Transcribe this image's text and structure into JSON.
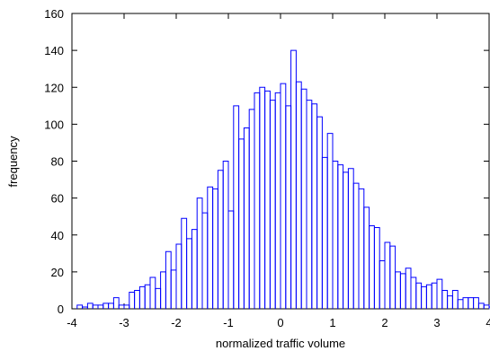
{
  "chart_data": {
    "type": "histogram",
    "title": "",
    "xlabel": "normalized traffic volume",
    "ylabel": "frequency",
    "xlim": [
      -4,
      4
    ],
    "ylim": [
      0,
      160
    ],
    "x_ticks": [
      -4,
      -3,
      -2,
      -1,
      0,
      1,
      2,
      3,
      4
    ],
    "y_ticks": [
      0,
      20,
      40,
      60,
      80,
      100,
      120,
      140,
      160
    ],
    "x_tick_labels": [
      "-4",
      "-3",
      "-2",
      "-1",
      "0",
      "1",
      "2",
      "3",
      "4"
    ],
    "y_tick_labels": [
      "0",
      "20",
      "40",
      "60",
      "80",
      "100",
      "120",
      "140",
      "160"
    ],
    "grid": false,
    "line_color": "#0000ff",
    "bin_start": -3.9,
    "bin_width": 0.1,
    "values": [
      2,
      1,
      3,
      2,
      2,
      3,
      3,
      6,
      2,
      2,
      9,
      10,
      12,
      13,
      17,
      11,
      20,
      31,
      21,
      35,
      49,
      38,
      43,
      60,
      52,
      66,
      65,
      75,
      80,
      53,
      110,
      92,
      98,
      108,
      117,
      120,
      118,
      113,
      117,
      122,
      110,
      140,
      123,
      119,
      113,
      111,
      104,
      82,
      95,
      80,
      78,
      74,
      76,
      68,
      65,
      55,
      45,
      44,
      26,
      36,
      34,
      20,
      19,
      22,
      17,
      14,
      12,
      13,
      14,
      16,
      10,
      7,
      10,
      5,
      6,
      6,
      6,
      3,
      2,
      1
    ]
  }
}
